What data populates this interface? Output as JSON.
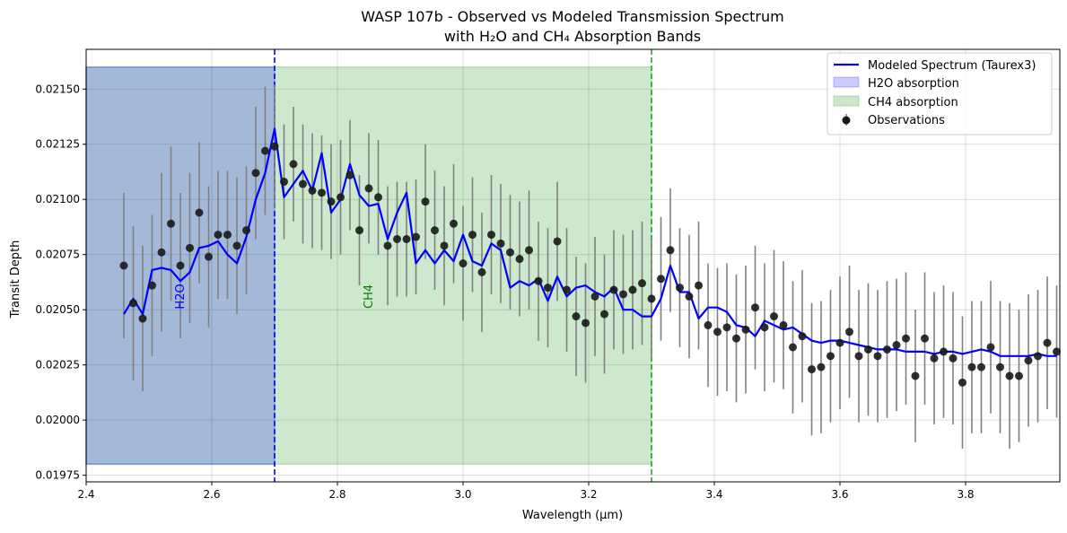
{
  "chart_data": {
    "type": "line",
    "title_line1": "WASP 107b - Observed vs Modeled Transmission Spectrum",
    "title_line2": "with H₂O and CH₄ Absorption Bands",
    "xlabel": "Wavelength (μm)",
    "ylabel": "Transit Depth",
    "xlim": [
      2.4,
      3.95
    ],
    "ylim": [
      0.01972,
      0.02168
    ],
    "grid": true,
    "legend_position": "top-right",
    "xticks": [
      "2.4",
      "2.6",
      "2.8",
      "3.0",
      "3.2",
      "3.4",
      "3.6",
      "3.8"
    ],
    "xtick_values": [
      2.4,
      2.6,
      2.8,
      3.0,
      3.2,
      3.4,
      3.6,
      3.8
    ],
    "yticks": [
      "0.01975",
      "0.02000",
      "0.02025",
      "0.02050",
      "0.02075",
      "0.02100",
      "0.02125",
      "0.02150"
    ],
    "ytick_values": [
      0.01975,
      0.02,
      0.02025,
      0.0205,
      0.02075,
      0.021,
      0.02125,
      0.0215
    ],
    "bands": [
      {
        "name": "H2O absorption",
        "label": "H2O",
        "x0": 2.4,
        "x1": 2.7,
        "y0": 0.0198,
        "y1": 0.0216,
        "fill": "#0000ff",
        "label_color": "#0000ff",
        "label_x": 2.55,
        "label_y": 0.02056
      },
      {
        "name": "CH4 absorption",
        "label": "CH4",
        "x0": 2.4,
        "x1": 3.3,
        "y0": 0.0198,
        "y1": 0.0216,
        "fill": "#2ca02c",
        "label_color": "#008000",
        "label_x": 2.85,
        "label_y": 0.02056
      }
    ],
    "vlines": [
      {
        "x": 2.7,
        "color": "#0000ff"
      },
      {
        "x": 3.3,
        "color": "#2ca02c"
      }
    ],
    "model": {
      "name": "Modeled Spectrum (Taurex3)",
      "color": "#0000ff",
      "x": [
        2.46,
        2.475,
        2.49,
        2.505,
        2.52,
        2.535,
        2.55,
        2.565,
        2.58,
        2.595,
        2.61,
        2.625,
        2.64,
        2.655,
        2.67,
        2.685,
        2.7,
        2.715,
        2.73,
        2.745,
        2.76,
        2.775,
        2.79,
        2.805,
        2.82,
        2.835,
        2.85,
        2.865,
        2.88,
        2.895,
        2.91,
        2.925,
        2.94,
        2.955,
        2.97,
        2.985,
        3.0,
        3.015,
        3.03,
        3.045,
        3.06,
        3.075,
        3.09,
        3.105,
        3.12,
        3.135,
        3.15,
        3.165,
        3.18,
        3.195,
        3.21,
        3.225,
        3.24,
        3.255,
        3.27,
        3.285,
        3.3,
        3.315,
        3.33,
        3.345,
        3.36,
        3.375,
        3.39,
        3.405,
        3.42,
        3.435,
        3.45,
        3.465,
        3.48,
        3.495,
        3.51,
        3.525,
        3.54,
        3.555,
        3.57,
        3.585,
        3.6,
        3.615,
        3.63,
        3.645,
        3.66,
        3.675,
        3.69,
        3.705,
        3.72,
        3.735,
        3.75,
        3.765,
        3.78,
        3.795,
        3.81,
        3.825,
        3.84,
        3.855,
        3.87,
        3.885,
        3.9,
        3.915,
        3.93,
        3.945
      ],
      "y": [
        0.02048,
        0.02055,
        0.02048,
        0.02068,
        0.02069,
        0.02068,
        0.02063,
        0.02067,
        0.02078,
        0.02079,
        0.02081,
        0.02075,
        0.02071,
        0.02083,
        0.021,
        0.02112,
        0.02132,
        0.02101,
        0.02107,
        0.02113,
        0.02104,
        0.02121,
        0.02094,
        0.021,
        0.02116,
        0.02102,
        0.02097,
        0.02098,
        0.02082,
        0.02094,
        0.02103,
        0.02071,
        0.02077,
        0.02071,
        0.02077,
        0.02072,
        0.02084,
        0.02072,
        0.0207,
        0.0208,
        0.02077,
        0.0206,
        0.02063,
        0.02061,
        0.02064,
        0.02054,
        0.02065,
        0.02056,
        0.0206,
        0.02061,
        0.02058,
        0.02056,
        0.0206,
        0.0205,
        0.0205,
        0.02047,
        0.02047,
        0.02055,
        0.0207,
        0.02058,
        0.02058,
        0.02046,
        0.02051,
        0.02051,
        0.02049,
        0.02043,
        0.02042,
        0.02038,
        0.02045,
        0.02043,
        0.02041,
        0.02042,
        0.02039,
        0.02036,
        0.02035,
        0.02036,
        0.02036,
        0.02035,
        0.02034,
        0.02033,
        0.02032,
        0.02032,
        0.02032,
        0.02031,
        0.02031,
        0.02031,
        0.0203,
        0.02031,
        0.02031,
        0.0203,
        0.02031,
        0.02032,
        0.02031,
        0.02029,
        0.02029,
        0.02029,
        0.02029,
        0.0203,
        0.02029,
        0.02029
      ]
    },
    "observations": {
      "name": "Observations",
      "color": "#1a1a1a",
      "errcolor": "#808080",
      "x": [
        2.46,
        2.475,
        2.49,
        2.505,
        2.52,
        2.535,
        2.55,
        2.565,
        2.58,
        2.595,
        2.61,
        2.625,
        2.64,
        2.655,
        2.67,
        2.685,
        2.7,
        2.715,
        2.73,
        2.745,
        2.76,
        2.775,
        2.79,
        2.805,
        2.82,
        2.835,
        2.85,
        2.865,
        2.88,
        2.895,
        2.91,
        2.925,
        2.94,
        2.955,
        2.97,
        2.985,
        3.0,
        3.015,
        3.03,
        3.045,
        3.06,
        3.075,
        3.09,
        3.105,
        3.12,
        3.135,
        3.15,
        3.165,
        3.18,
        3.195,
        3.21,
        3.225,
        3.24,
        3.255,
        3.27,
        3.285,
        3.3,
        3.315,
        3.33,
        3.345,
        3.36,
        3.375,
        3.39,
        3.405,
        3.42,
        3.435,
        3.45,
        3.465,
        3.48,
        3.495,
        3.51,
        3.525,
        3.54,
        3.555,
        3.57,
        3.585,
        3.6,
        3.615,
        3.63,
        3.645,
        3.66,
        3.675,
        3.69,
        3.705,
        3.72,
        3.735,
        3.75,
        3.765,
        3.78,
        3.795,
        3.81,
        3.825,
        3.84,
        3.855,
        3.87,
        3.885,
        3.9,
        3.915,
        3.93,
        3.945
      ],
      "y": [
        0.0207,
        0.02053,
        0.02046,
        0.02061,
        0.02076,
        0.02089,
        0.0207,
        0.02078,
        0.02094,
        0.02074,
        0.02084,
        0.02084,
        0.02079,
        0.02086,
        0.02112,
        0.02122,
        0.02124,
        0.02108,
        0.02116,
        0.02107,
        0.02104,
        0.02103,
        0.02099,
        0.02101,
        0.02111,
        0.02086,
        0.02105,
        0.02101,
        0.02079,
        0.02082,
        0.02082,
        0.02083,
        0.02099,
        0.02086,
        0.02079,
        0.02089,
        0.02071,
        0.02084,
        0.02067,
        0.02084,
        0.0208,
        0.02076,
        0.02073,
        0.02077,
        0.02063,
        0.0206,
        0.02081,
        0.02059,
        0.02047,
        0.02044,
        0.02056,
        0.02048,
        0.02059,
        0.02057,
        0.02059,
        0.02062,
        0.02055,
        0.02064,
        0.02077,
        0.0206,
        0.02056,
        0.02061,
        0.02043,
        0.0204,
        0.02042,
        0.02037,
        0.02041,
        0.02051,
        0.02042,
        0.02047,
        0.02043,
        0.02033,
        0.02038,
        0.02023,
        0.02024,
        0.02029,
        0.02035,
        0.0204,
        0.02029,
        0.02032,
        0.02029,
        0.02032,
        0.02034,
        0.02037,
        0.0202,
        0.02037,
        0.02028,
        0.02031,
        0.02028,
        0.02017,
        0.02024,
        0.02024,
        0.02033,
        0.02024,
        0.0202,
        0.0202,
        0.02027,
        0.02029,
        0.02035,
        0.02031
      ],
      "yerr": [
        0.00033,
        0.00035,
        0.00033,
        0.00032,
        0.00036,
        0.00035,
        0.00033,
        0.00034,
        0.00032,
        0.00032,
        0.00029,
        0.00029,
        0.00031,
        0.00029,
        0.0003,
        0.00029,
        0.00028,
        0.00026,
        0.00026,
        0.00027,
        0.00026,
        0.00026,
        0.00026,
        0.00026,
        0.00025,
        0.00025,
        0.00025,
        0.00026,
        0.00027,
        0.00026,
        0.00026,
        0.00026,
        0.00026,
        0.00027,
        0.00027,
        0.00027,
        0.00026,
        0.00026,
        0.00027,
        0.00027,
        0.00027,
        0.00026,
        0.00026,
        0.00027,
        0.00027,
        0.00027,
        0.00027,
        0.00028,
        0.00027,
        0.00027,
        0.00027,
        0.00027,
        0.00027,
        0.00027,
        0.00027,
        0.00028,
        0.00027,
        0.00028,
        0.00028,
        0.00027,
        0.00028,
        0.00029,
        0.00028,
        0.00029,
        0.00029,
        0.00029,
        0.00029,
        0.00028,
        0.00029,
        0.0003,
        0.00029,
        0.0003,
        0.0003,
        0.0003,
        0.0003,
        0.0003,
        0.0003,
        0.0003,
        0.0003,
        0.0003,
        0.0003,
        0.00031,
        0.0003,
        0.0003,
        0.0003,
        0.0003,
        0.0003,
        0.0003,
        0.0003,
        0.0003,
        0.0003,
        0.0003,
        0.0003,
        0.0003,
        0.00033,
        0.0003,
        0.0003,
        0.0003,
        0.0003,
        0.0003
      ]
    },
    "legend": [
      {
        "kind": "line",
        "label": "Modeled Spectrum (Taurex3)"
      },
      {
        "kind": "patch_blue",
        "label": "H2O absorption"
      },
      {
        "kind": "patch_green",
        "label": "CH4 absorption"
      },
      {
        "kind": "point",
        "label": "Observations"
      }
    ]
  }
}
